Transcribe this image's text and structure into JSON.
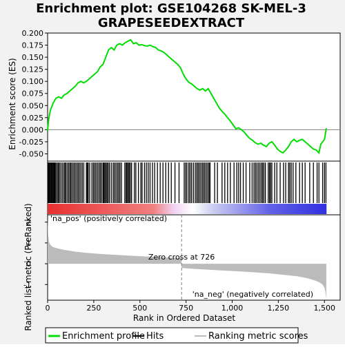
{
  "chart_data": {
    "type": "line",
    "title_line1": "Enrichment plot: GSE104268 SK-MEL-3",
    "title_line2": "GRAPESEEDEXTRACT",
    "colors": {
      "enrichment": "#00dd00",
      "hits": "#000000",
      "ranking_fill": "#bbbbbb",
      "zero_line": "#7f7f7f",
      "pos_label": "#d00000",
      "neg_label": "#0000c0",
      "heat_positive": "#e83030",
      "heat_negative": "#3030e0"
    },
    "es_panel": {
      "ylabel": "Enrichment score (ES)",
      "ylim": [
        -0.065,
        0.2
      ],
      "yticks": [
        -0.05,
        -0.025,
        0.0,
        0.025,
        0.05,
        0.075,
        0.1,
        0.125,
        0.15,
        0.175,
        0.2
      ],
      "ytick_labels": [
        "-0.050",
        "-0.025",
        "0.000",
        "0.025",
        "0.050",
        "0.075",
        "0.100",
        "0.125",
        "0.150",
        "0.175",
        "0.200"
      ],
      "curve_x": [
        0,
        5,
        15,
        30,
        45,
        60,
        75,
        90,
        105,
        120,
        135,
        150,
        165,
        180,
        195,
        210,
        225,
        240,
        255,
        270,
        285,
        300,
        315,
        330,
        345,
        360,
        375,
        390,
        405,
        420,
        435,
        450,
        465,
        480,
        495,
        510,
        525,
        540,
        555,
        570,
        585,
        600,
        615,
        630,
        645,
        660,
        675,
        690,
        705,
        720,
        735,
        750,
        765,
        780,
        795,
        810,
        825,
        840,
        855,
        870,
        885,
        900,
        915,
        930,
        945,
        960,
        975,
        990,
        1005,
        1020,
        1035,
        1050,
        1065,
        1080,
        1095,
        1110,
        1125,
        1140,
        1155,
        1170,
        1185,
        1200,
        1215,
        1230,
        1245,
        1260,
        1275,
        1290,
        1305,
        1320,
        1335,
        1350,
        1365,
        1380,
        1395,
        1410,
        1425,
        1440,
        1455,
        1470,
        1480,
        1490,
        1500,
        1510
      ],
      "curve_y": [
        -0.002,
        0.02,
        0.04,
        0.055,
        0.065,
        0.068,
        0.065,
        0.072,
        0.075,
        0.08,
        0.085,
        0.09,
        0.097,
        0.1,
        0.097,
        0.1,
        0.105,
        0.11,
        0.115,
        0.12,
        0.13,
        0.135,
        0.15,
        0.165,
        0.17,
        0.165,
        0.175,
        0.178,
        0.175,
        0.18,
        0.183,
        0.186,
        0.178,
        0.18,
        0.175,
        0.176,
        0.174,
        0.173,
        0.175,
        0.172,
        0.17,
        0.165,
        0.163,
        0.16,
        0.155,
        0.15,
        0.145,
        0.14,
        0.135,
        0.128,
        0.115,
        0.105,
        0.098,
        0.095,
        0.09,
        0.085,
        0.082,
        0.085,
        0.08,
        0.085,
        0.075,
        0.065,
        0.055,
        0.045,
        0.038,
        0.032,
        0.025,
        0.018,
        0.01,
        0.002,
        0.004,
        0.0,
        -0.005,
        -0.012,
        -0.018,
        -0.022,
        -0.027,
        -0.03,
        -0.028,
        -0.032,
        -0.035,
        -0.028,
        -0.025,
        -0.032,
        -0.04,
        -0.045,
        -0.048,
        -0.042,
        -0.035,
        -0.025,
        -0.02,
        -0.025,
        -0.022,
        -0.02,
        -0.025,
        -0.03,
        -0.035,
        -0.04,
        -0.042,
        -0.048,
        -0.03,
        -0.025,
        -0.02,
        0.003
      ]
    },
    "hits_panel": {
      "hit_ranks": [
        2,
        5,
        9,
        14,
        18,
        22,
        27,
        31,
        36,
        40,
        45,
        52,
        58,
        64,
        72,
        80,
        88,
        94,
        100,
        108,
        115,
        122,
        128,
        136,
        143,
        150,
        158,
        165,
        172,
        180,
        188,
        196,
        210,
        215,
        220,
        228,
        240,
        248,
        255,
        262,
        270,
        278,
        285,
        292,
        300,
        305,
        310,
        316,
        322,
        328,
        335,
        345,
        355,
        362,
        370,
        378,
        385,
        392,
        400,
        418,
        425,
        430,
        436,
        442,
        448,
        455,
        470,
        478,
        492,
        505,
        512,
        525,
        535,
        545,
        555,
        568,
        580,
        595,
        610,
        625,
        640,
        655,
        670,
        690,
        712,
        740,
        748,
        755,
        765,
        772,
        780,
        790,
        800,
        808,
        815,
        822,
        830,
        838,
        845,
        852,
        860,
        868,
        875,
        880,
        905,
        920,
        945,
        960,
        975,
        990,
        1010,
        1025,
        1035,
        1045,
        1060,
        1075,
        1095,
        1108,
        1118,
        1126,
        1134,
        1142,
        1150,
        1158,
        1165,
        1172,
        1180,
        1195,
        1202,
        1208,
        1215,
        1230,
        1242,
        1260,
        1278,
        1290,
        1305,
        1312,
        1320,
        1330,
        1345,
        1365,
        1380,
        1395,
        1420,
        1440,
        1460,
        1470,
        1490,
        1500,
        1508
      ]
    },
    "rank_panel": {
      "ylabel": "Ranked list metric (PreRanked)",
      "xlabel": "Rank in Ordered Dataset",
      "ylim": [
        -1.75,
        2.35
      ],
      "yticks": [
        -1,
        0,
        1,
        2
      ],
      "ytick_labels": [
        "-1",
        "0",
        "1",
        "2"
      ],
      "x": [
        0,
        3,
        8,
        15,
        30,
        60,
        100,
        150,
        200,
        300,
        400,
        500,
        600,
        700,
        725,
        726,
        750,
        800,
        900,
        1000,
        1100,
        1200,
        1300,
        1350,
        1400,
        1440,
        1470,
        1490,
        1500,
        1505,
        1510
      ],
      "values": [
        2.2,
        1.4,
        1.05,
        0.9,
        0.8,
        0.72,
        0.65,
        0.58,
        0.53,
        0.46,
        0.41,
        0.36,
        0.32,
        0.28,
        0.27,
        -0.2,
        -0.22,
        -0.25,
        -0.3,
        -0.35,
        -0.4,
        -0.46,
        -0.55,
        -0.6,
        -0.68,
        -0.78,
        -0.88,
        -1.0,
        -1.15,
        -1.35,
        -1.7
      ],
      "pos_label": "'na_pos' (positively correlated)",
      "neg_label": "'na_neg' (negatively correlated)",
      "zero_cross_label": "Zero cross at 726",
      "zero_cross": 726
    },
    "xaxis": {
      "xlim": [
        0,
        1585
      ],
      "xticks": [
        0,
        250,
        500,
        750,
        1000,
        1250,
        1500
      ],
      "xtick_labels": [
        "0",
        "250",
        "500",
        "750",
        "1,000",
        "1,250",
        "1,500"
      ],
      "n_genes": 1511
    },
    "legend": {
      "items": [
        {
          "label": "Enrichment profile",
          "color": "#00dd00"
        },
        {
          "label": "Hits",
          "color": "#000000"
        },
        {
          "label": "Ranking metric scores",
          "color": "#bbbbbb"
        }
      ]
    }
  }
}
